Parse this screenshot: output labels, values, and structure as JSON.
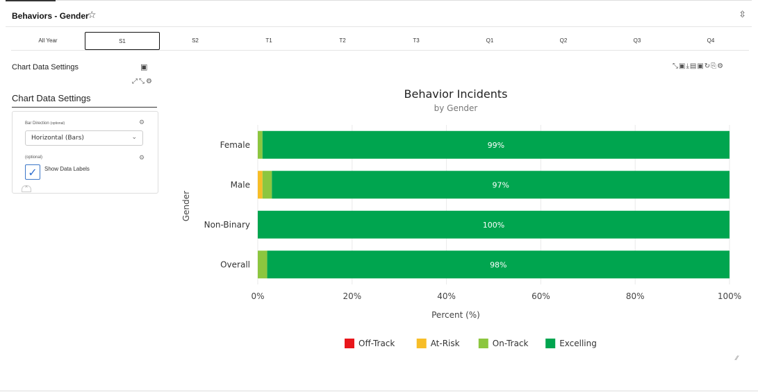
{
  "header": {
    "title": "Behaviors - Gender",
    "star_icon": "star-outline-icon",
    "collapse_icon": "collapse-icon"
  },
  "tabs": [
    {
      "label": "All Year"
    },
    {
      "label": "S1",
      "active": true
    },
    {
      "label": "S2"
    },
    {
      "label": "T1"
    },
    {
      "label": "T2"
    },
    {
      "label": "T3"
    },
    {
      "label": "Q1"
    },
    {
      "label": "Q2"
    },
    {
      "label": "Q3"
    },
    {
      "label": "Q4"
    }
  ],
  "settings": {
    "title": "Chart Data Settings",
    "panel_title": "Chart Data Settings",
    "bar_direction_label": "Bar Direction",
    "bar_direction_optional": "(optional)",
    "bar_direction_value": "Horizontal (Bars)",
    "labels_optional": "(optional)",
    "show_labels_label": "Show Data Labels",
    "show_labels_checked": true
  },
  "chart_data": {
    "type": "bar",
    "orientation": "horizontal",
    "stacked": true,
    "title": "Behavior Incidents",
    "subtitle": "by Gender",
    "xlabel": "Percent (%)",
    "ylabel": "Gender",
    "xlim": [
      0,
      100
    ],
    "x_ticks": [
      "0%",
      "20%",
      "40%",
      "60%",
      "80%",
      "100%"
    ],
    "categories": [
      "Female",
      "Male",
      "Non-Binary",
      "Overall"
    ],
    "series": [
      {
        "name": "Off-Track",
        "color": "#e8161b",
        "values": [
          0,
          0,
          0,
          0
        ]
      },
      {
        "name": "At-Risk",
        "color": "#f7bd27",
        "values": [
          0,
          1,
          0,
          0
        ]
      },
      {
        "name": "On-Track",
        "color": "#8cc63f",
        "values": [
          1,
          2,
          0,
          2
        ]
      },
      {
        "name": "Excelling",
        "color": "#00a54f",
        "values": [
          99,
          97,
          100,
          98
        ]
      }
    ],
    "data_labels": [
      "99%",
      "97%",
      "100%",
      "98%"
    ],
    "legend_position": "bottom",
    "grid": true
  }
}
